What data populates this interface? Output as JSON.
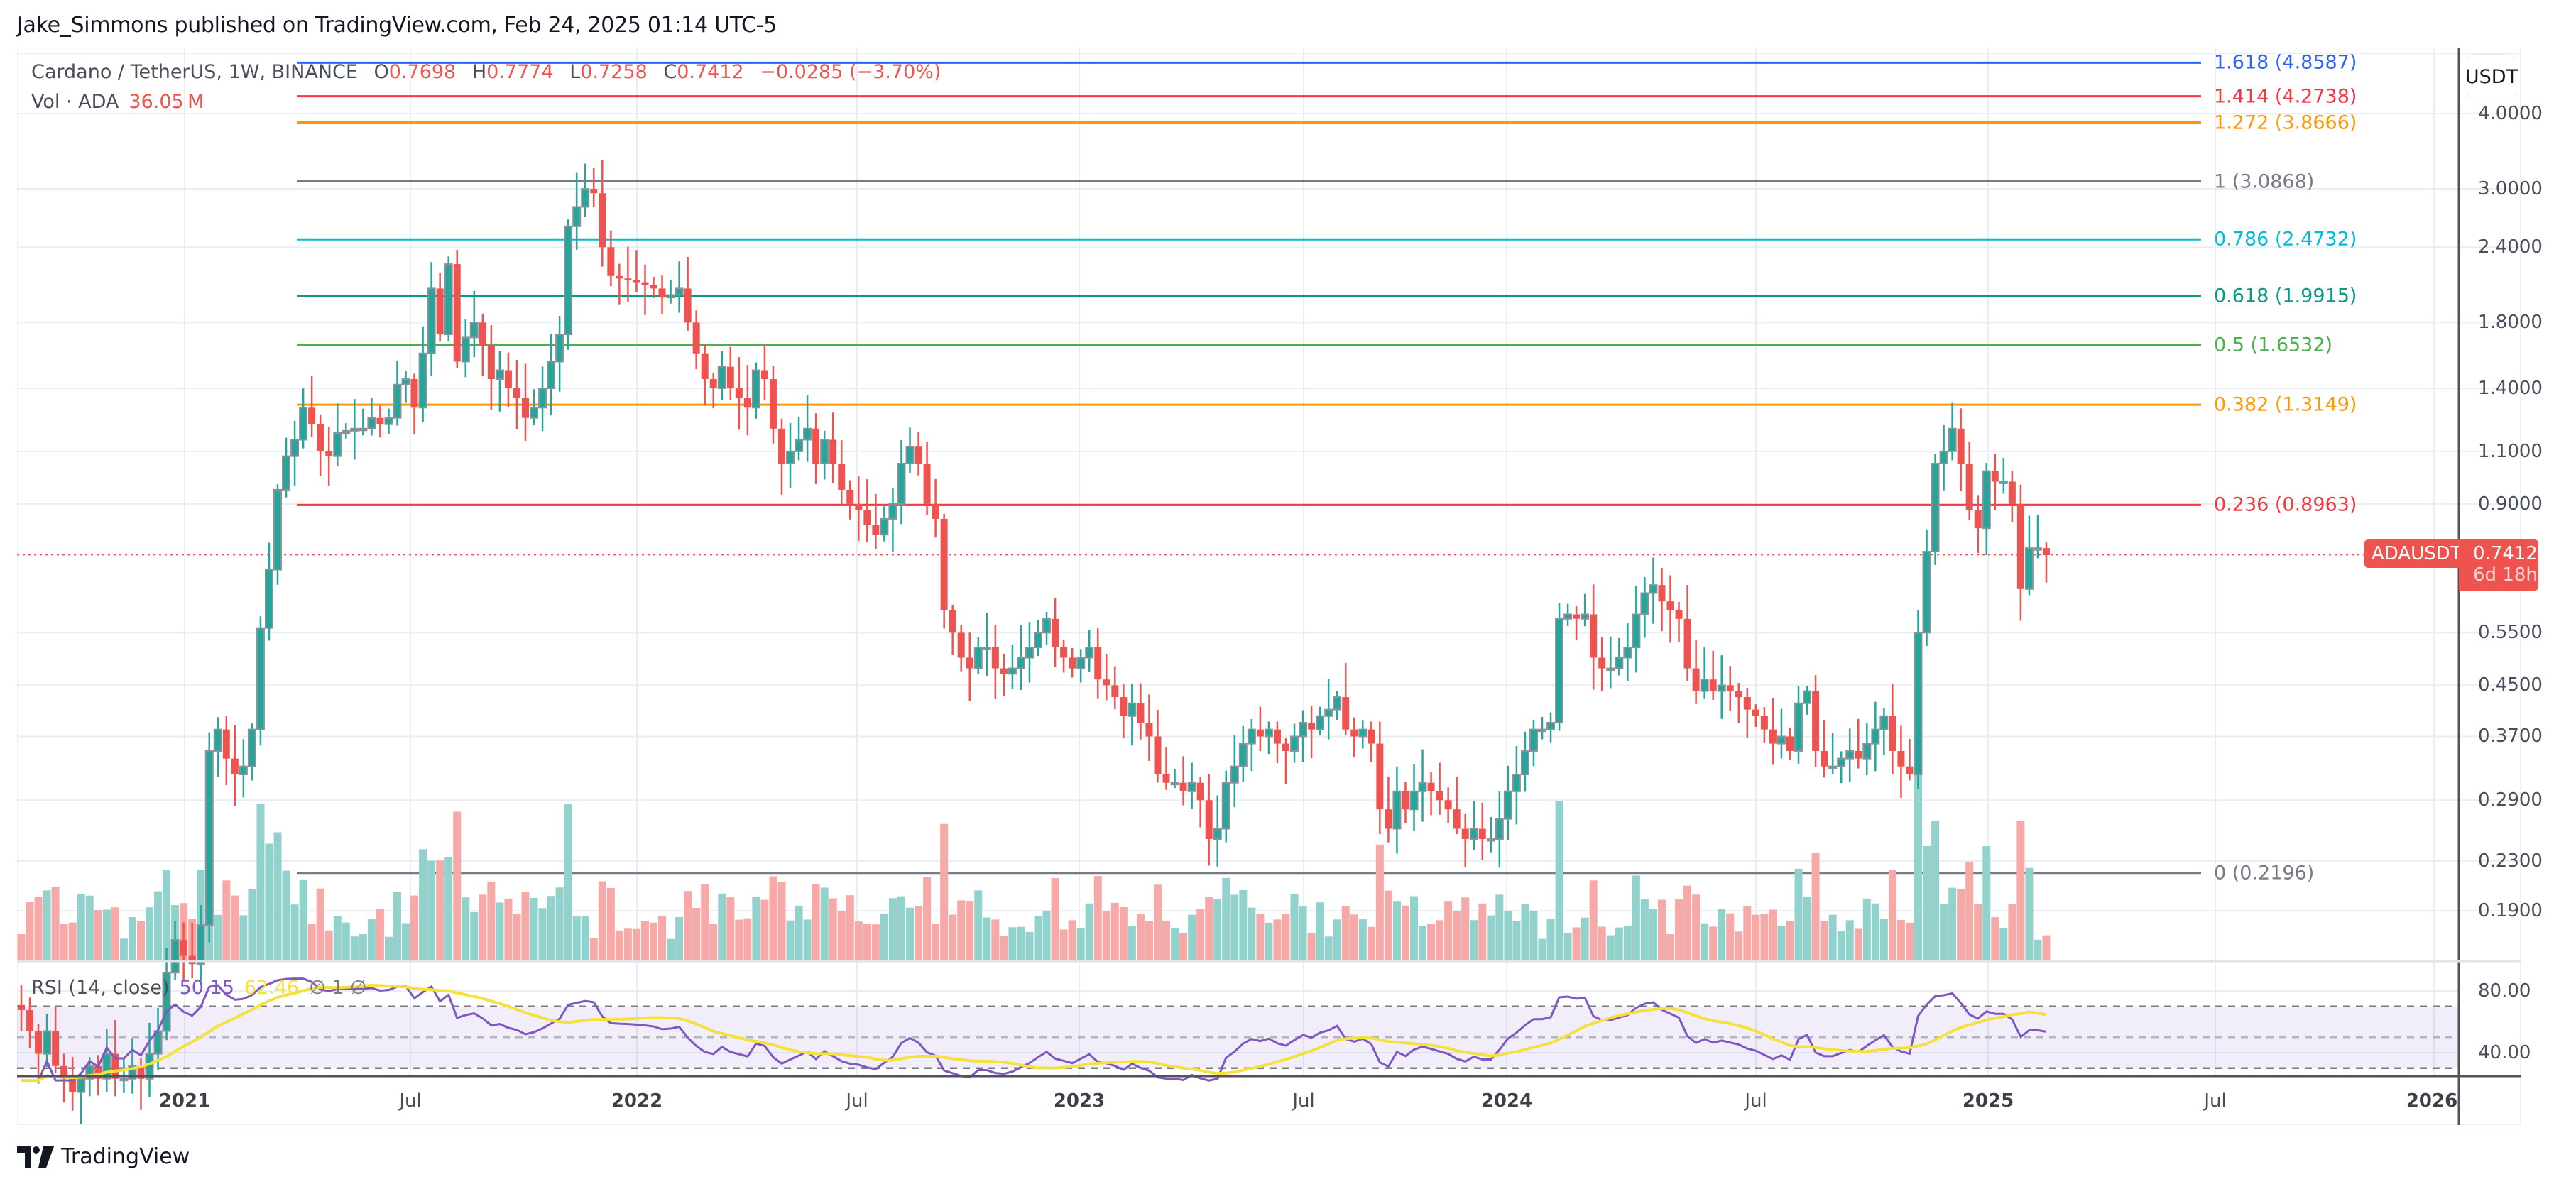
{
  "header": {
    "publisher_line": "Jake_Simmons published on TradingView.com, Feb 24, 2025 01:14 UTC-5"
  },
  "legend": {
    "symbol": "Cardano / TetherUS, 1W, BINANCE",
    "open_label": "O",
    "open": "0.7698",
    "high_label": "H",
    "high": "0.7774",
    "low_label": "L",
    "low": "0.7258",
    "close_label": "C",
    "close": "0.7412",
    "change": "−0.0285 (−3.70%)",
    "volume_label": "Vol · ADA",
    "volume_value": "36.05 M"
  },
  "rsi_legend": {
    "label": "RSI (14, close)",
    "rsi_value": "50.15",
    "ma_value": "62.46",
    "extra": "∅ 1 ∅"
  },
  "price_axis": {
    "currency": "USDT",
    "ticks": [
      "4.0000",
      "3.0000",
      "2.4000",
      "1.8000",
      "1.4000",
      "1.1000",
      "0.9000",
      "0.5500",
      "0.4500",
      "0.3700",
      "0.2900",
      "0.2300",
      "0.1900"
    ]
  },
  "rsi_axis": {
    "ticks": [
      "80.00",
      "40.00"
    ]
  },
  "current_price": {
    "ticker": "ADAUSDT",
    "price": "0.7412",
    "countdown": "6d 18h"
  },
  "time_axis": {
    "labels": [
      {
        "text": "2021",
        "year": true
      },
      {
        "text": "Jul",
        "year": false
      },
      {
        "text": "2022",
        "year": true
      },
      {
        "text": "Jul",
        "year": false
      },
      {
        "text": "2023",
        "year": true
      },
      {
        "text": "Jul",
        "year": false
      },
      {
        "text": "2024",
        "year": true
      },
      {
        "text": "Jul",
        "year": false
      },
      {
        "text": "2025",
        "year": true
      },
      {
        "text": "Jul",
        "year": false
      },
      {
        "text": "2026",
        "year": true
      }
    ]
  },
  "brand": {
    "name": "TradingView"
  },
  "colors": {
    "up": "#26a69a",
    "down": "#ef5350",
    "up_volume": "#92d2cc",
    "down_volume": "#f7a9a7",
    "rsi": "#7e57c2",
    "rsi_ma": "#f5e13b",
    "grid": "#e8eef4"
  },
  "chart_data": {
    "type": "candlestick",
    "title": "Cardano / TetherUS, 1W, BINANCE",
    "xlabel": "",
    "ylabel": "USDT",
    "y_scale": "log",
    "ylim": [
      0.17,
      5.2
    ],
    "x_range": [
      "2020-08",
      "2026-01"
    ],
    "fibonacci_retracement": [
      {
        "level": "1.618",
        "price": 4.8587,
        "label": "1.618 (4.8587)",
        "color": "#2962ff"
      },
      {
        "level": "1.414",
        "price": 4.2738,
        "label": "1.414 (4.2738)",
        "color": "#f23645"
      },
      {
        "level": "1.272",
        "price": 3.8666,
        "label": "1.272 (3.8666)",
        "color": "#ff9800"
      },
      {
        "level": "1",
        "price": 3.0868,
        "label": "1 (3.0868)",
        "color": "#787b86"
      },
      {
        "level": "0.786",
        "price": 2.4732,
        "label": "0.786 (2.4732)",
        "color": "#00bcd4"
      },
      {
        "level": "0.618",
        "price": 1.9915,
        "label": "0.618 (1.9915)",
        "color": "#089981"
      },
      {
        "level": "0.5",
        "price": 1.6532,
        "label": "0.5 (1.6532)",
        "color": "#4caf50"
      },
      {
        "level": "0.382",
        "price": 1.3149,
        "label": "0.382 (1.3149)",
        "color": "#ff9800"
      },
      {
        "level": "0.236",
        "price": 0.8963,
        "label": "0.236 (0.8963)",
        "color": "#f23645"
      },
      {
        "level": "0",
        "price": 0.2196,
        "label": "0 (0.2196)",
        "color": "#787b86"
      }
    ],
    "last_bar": {
      "open": 0.7698,
      "high": 0.7774,
      "low": 0.7258,
      "close": 0.7412,
      "volume": "36.05M"
    },
    "weekly_closes": [
      0.13,
      0.12,
      0.11,
      0.12,
      0.105,
      0.1,
      0.095,
      0.1,
      0.105,
      0.1,
      0.11,
      0.1,
      0.1,
      0.105,
      0.1,
      0.11,
      0.12,
      0.15,
      0.17,
      0.16,
      0.155,
      0.18,
      0.35,
      0.38,
      0.34,
      0.32,
      0.33,
      0.38,
      0.56,
      0.7,
      0.95,
      1.08,
      1.15,
      1.3,
      1.22,
      1.1,
      1.08,
      1.18,
      1.19,
      1.2,
      1.2,
      1.25,
      1.22,
      1.25,
      1.42,
      1.45,
      1.3,
      1.6,
      2.05,
      1.72,
      2.25,
      1.55,
      1.7,
      1.8,
      1.65,
      1.45,
      1.5,
      1.4,
      1.35,
      1.25,
      1.3,
      1.4,
      1.55,
      1.72,
      2.6,
      2.8,
      3.0,
      2.95,
      2.4,
      2.15,
      2.13,
      2.12,
      2.1,
      2.08,
      2.05,
      1.98,
      2.0,
      2.05,
      1.8,
      1.6,
      1.45,
      1.4,
      1.52,
      1.4,
      1.35,
      1.3,
      1.5,
      1.45,
      1.2,
      1.05,
      1.1,
      1.15,
      1.2,
      1.05,
      1.15,
      1.05,
      0.95,
      0.9,
      0.88,
      0.83,
      0.8,
      0.85,
      0.9,
      1.05,
      1.12,
      1.05,
      0.9,
      0.85,
      0.6,
      0.55,
      0.5,
      0.48,
      0.52,
      0.52,
      0.48,
      0.47,
      0.48,
      0.5,
      0.52,
      0.55,
      0.58,
      0.52,
      0.5,
      0.48,
      0.5,
      0.52,
      0.46,
      0.45,
      0.43,
      0.4,
      0.42,
      0.39,
      0.37,
      0.32,
      0.31,
      0.31,
      0.3,
      0.31,
      0.29,
      0.25,
      0.26,
      0.31,
      0.33,
      0.36,
      0.38,
      0.37,
      0.38,
      0.36,
      0.35,
      0.37,
      0.39,
      0.38,
      0.4,
      0.41,
      0.43,
      0.38,
      0.37,
      0.38,
      0.36,
      0.28,
      0.26,
      0.3,
      0.28,
      0.3,
      0.31,
      0.3,
      0.29,
      0.28,
      0.26,
      0.25,
      0.26,
      0.25,
      0.25,
      0.27,
      0.3,
      0.32,
      0.35,
      0.38,
      0.38,
      0.39,
      0.58,
      0.59,
      0.58,
      0.59,
      0.5,
      0.48,
      0.48,
      0.5,
      0.52,
      0.59,
      0.64,
      0.66,
      0.62,
      0.6,
      0.58,
      0.48,
      0.44,
      0.46,
      0.44,
      0.45,
      0.44,
      0.43,
      0.41,
      0.4,
      0.38,
      0.36,
      0.37,
      0.35,
      0.42,
      0.44,
      0.35,
      0.33,
      0.33,
      0.34,
      0.35,
      0.34,
      0.36,
      0.38,
      0.4,
      0.35,
      0.33,
      0.32,
      0.55,
      0.75,
      1.05,
      1.1,
      1.2,
      1.05,
      0.88,
      0.82,
      1.02,
      0.98,
      0.98,
      0.9,
      0.65,
      0.76,
      0.76,
      0.74
    ],
    "rsi": {
      "length": 14,
      "source": "close",
      "last": 50.15,
      "ma_last": 62.46,
      "upper_band": 70,
      "middle": 50,
      "lower_band": 30
    }
  }
}
